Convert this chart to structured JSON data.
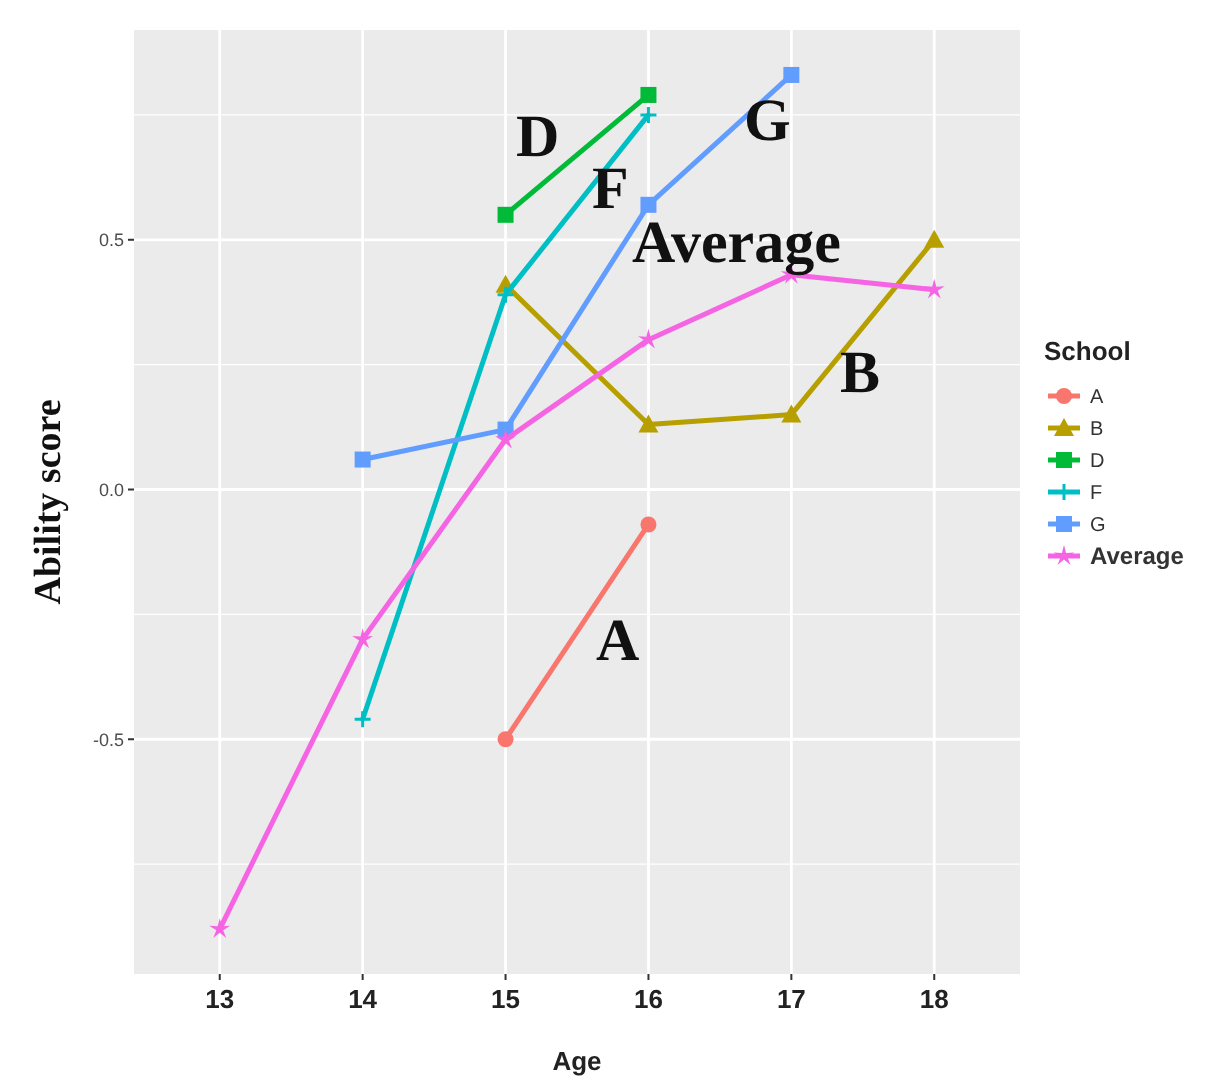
{
  "chart_data": {
    "type": "line",
    "xlabel": "Age",
    "ylabel": "Ability score",
    "legend_title": "School",
    "legend": "right",
    "grid": true,
    "xlim": [
      12.4,
      18.6
    ],
    "xticks": [
      13,
      14,
      15,
      16,
      17,
      18
    ],
    "ylim": [
      -0.97,
      0.92
    ],
    "yticks": [
      -0.5,
      {
        "value": 0,
        "label": "0.0"
      },
      0.5
    ],
    "series": [
      {
        "name": "A",
        "color": "#f8766d",
        "marker": "circle",
        "x": [
          15,
          16
        ],
        "values": [
          -0.5,
          -0.07
        ]
      },
      {
        "name": "B",
        "color": "#b79f00",
        "marker": "triangle",
        "x": [
          15,
          16,
          17,
          18
        ],
        "values": [
          0.41,
          0.13,
          0.15,
          0.5
        ]
      },
      {
        "name": "D",
        "color": "#00ba38",
        "marker": "square",
        "x": [
          15,
          16
        ],
        "values": [
          0.55,
          0.79
        ]
      },
      {
        "name": "F",
        "color": "#00bfc4",
        "marker": "cross",
        "x": [
          14,
          15,
          16
        ],
        "values": [
          -0.46,
          0.39,
          0.75
        ]
      },
      {
        "name": "G",
        "color": "#619cff",
        "marker": "square",
        "x": [
          14,
          15,
          16,
          17
        ],
        "values": [
          0.06,
          0.12,
          0.57,
          0.83
        ]
      },
      {
        "name": "Average",
        "color": "#f564e3",
        "marker": "star",
        "x": [
          13,
          14,
          15,
          16,
          17,
          18
        ],
        "values": [
          -0.88,
          -0.3,
          0.1,
          0.3,
          0.43,
          0.4
        ]
      }
    ],
    "annotations": [
      "D",
      "F",
      "G",
      "Average",
      "B",
      "A"
    ]
  }
}
